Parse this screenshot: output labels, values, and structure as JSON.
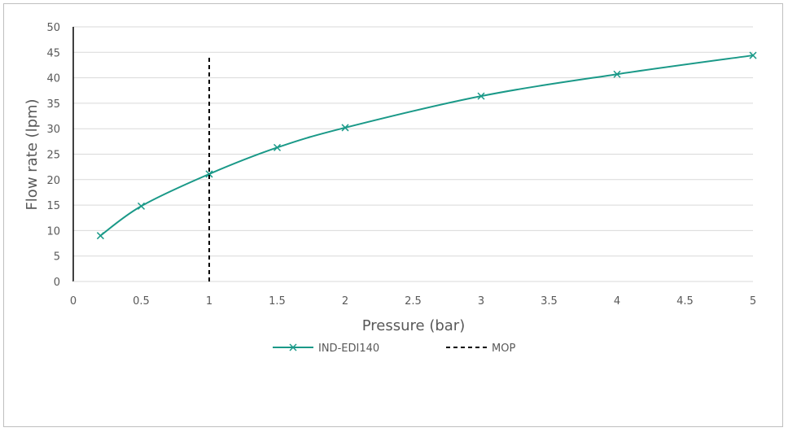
{
  "chart_data": {
    "type": "line",
    "title": "",
    "xlabel": "Pressure (bar)",
    "ylabel": "Flow rate (lpm)",
    "xlim": [
      0,
      5
    ],
    "ylim": [
      0,
      50
    ],
    "x_ticks": [
      "0",
      "0.5",
      "1",
      "1.5",
      "2",
      "2.5",
      "3",
      "3.5",
      "4",
      "4.5",
      "5"
    ],
    "y_ticks": [
      "0",
      "5",
      "10",
      "15",
      "20",
      "25",
      "30",
      "35",
      "40",
      "45",
      "50"
    ],
    "grid": true,
    "legend_position": "bottom",
    "series": [
      {
        "name": "IND-EDI140",
        "color": "#1a9988",
        "marker": "x",
        "x": [
          0.2,
          0.5,
          1,
          1.5,
          2,
          3,
          4,
          5
        ],
        "y": [
          9,
          14.8,
          21.1,
          26.3,
          30.2,
          36.4,
          40.7,
          44.4
        ]
      },
      {
        "name": "MOP",
        "color": "#000000",
        "style": "dashed",
        "x": [
          1,
          1
        ],
        "y": [
          0,
          44.5
        ]
      }
    ]
  }
}
